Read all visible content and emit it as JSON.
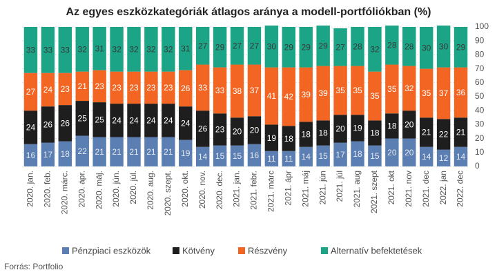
{
  "chart_data": {
    "type": "stacked_bar",
    "title": "Az egyes eszközkategóriák átlagos aránya a modell-portfóliókban (%)",
    "source": "Forrás: Portfolio",
    "categories": [
      "2020. jan.",
      "2020. feb.",
      "2020. márc.",
      "2020. ápr.",
      "2020. máj.",
      "2020. jún.",
      "2020. júl.",
      "2020. aug.",
      "2020. szept.",
      "2020. okt.",
      "2020. nov.",
      "2020. dec.",
      "2021. jan.",
      "2021. febr.",
      "2021. márc",
      "2021. ápr",
      "2021. máj",
      "2021. jún",
      "2021. júl",
      "2021. aug",
      "2021. szept",
      "2021. okt",
      "2021. nov",
      "2021. dec",
      "2022. jan",
      "2022. dec"
    ],
    "series": [
      {
        "name": "Pénzpiaci eszközök",
        "color": "#5b7fb3",
        "values": [
          16,
          17,
          18,
          22,
          21,
          21,
          21,
          21,
          21,
          19,
          14,
          15,
          15,
          16,
          11,
          11,
          14,
          15,
          17,
          18,
          15,
          20,
          20,
          14,
          12,
          14
        ]
      },
      {
        "name": "Kötvény",
        "color": "#1e1e1e",
        "values": [
          24,
          26,
          26,
          25,
          25,
          24,
          24,
          24,
          24,
          24,
          26,
          23,
          20,
          20,
          19,
          18,
          18,
          18,
          20,
          19,
          18,
          18,
          20,
          21,
          22,
          21
        ]
      },
      {
        "name": "Részvény",
        "color": "#f26522",
        "values": [
          27,
          24,
          23,
          21,
          23,
          23,
          23,
          23,
          23,
          26,
          33,
          33,
          38,
          37,
          41,
          42,
          39,
          39,
          35,
          35,
          35,
          35,
          32,
          35,
          37,
          36
        ]
      },
      {
        "name": "Alternatív befektetések",
        "color": "#1ba586",
        "values": [
          33,
          33,
          33,
          32,
          31,
          32,
          32,
          32,
          32,
          31,
          27,
          29,
          27,
          27,
          30,
          29,
          29,
          29,
          27,
          28,
          32,
          28,
          28,
          30,
          30,
          29
        ]
      }
    ],
    "ylim": [
      0,
      100
    ],
    "yticks": [
      0,
      10,
      20,
      30,
      40,
      50,
      60,
      70,
      80,
      90,
      100
    ],
    "y_axis_side": "right",
    "grid": true,
    "legend": "bottom"
  }
}
